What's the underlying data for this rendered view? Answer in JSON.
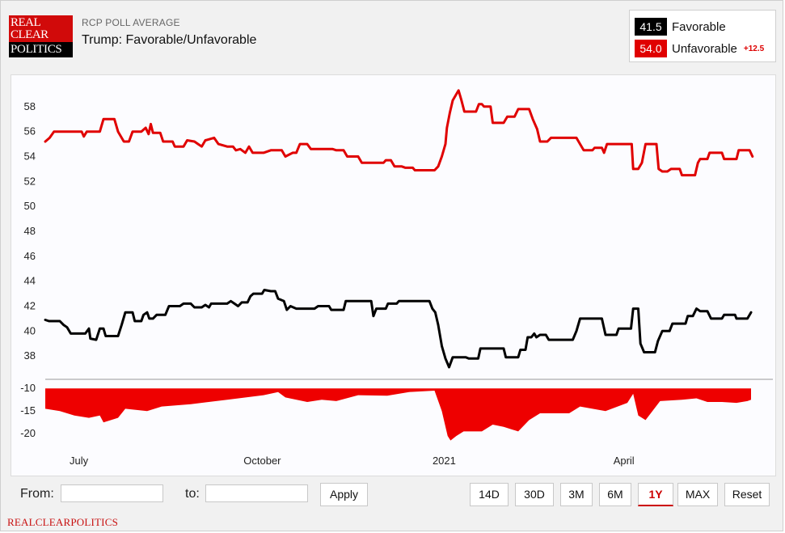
{
  "header": {
    "logo": {
      "line1": "REAL",
      "line2": "CLEAR",
      "line3": "POLITICS"
    },
    "kicker": "RCP POLL AVERAGE",
    "title": "Trump: Favorable/Unfavorable"
  },
  "legend": {
    "favorable": {
      "value": "41.5",
      "label": "Favorable",
      "color": "#000000"
    },
    "unfavorable": {
      "value": "54.0",
      "label": "Unfavorable",
      "color": "#e00000",
      "spread": "+12.5"
    }
  },
  "controls": {
    "from_label": "From:",
    "to_label": "to:",
    "from_value": "",
    "to_value": "",
    "apply_label": "Apply",
    "ranges": [
      "14D",
      "30D",
      "3M",
      "6M",
      "1Y",
      "MAX",
      "Reset"
    ],
    "active_range": "1Y"
  },
  "footer": {
    "brand": "REALCLEARPOLITICS"
  },
  "chart_data": {
    "type": "line",
    "title": "Trump: Favorable/Unfavorable",
    "x_tick_labels": [
      {
        "label": "July",
        "t": 0.024
      },
      {
        "label": "October",
        "t": 0.276
      },
      {
        "label": "2021",
        "t": 0.526
      },
      {
        "label": "April",
        "t": 0.773
      }
    ],
    "main_panel": {
      "ylim": [
        36,
        60
      ],
      "yticks": [
        38,
        40,
        42,
        44,
        46,
        48,
        50,
        52,
        54,
        56,
        58
      ]
    },
    "spread_panel": {
      "ylim": [
        -23,
        -8
      ],
      "yticks": [
        -10,
        -15,
        -20
      ]
    },
    "grid": false,
    "series": [
      {
        "name": "Unfavorable",
        "color": "#e00000",
        "points": [
          [
            0,
            55.2
          ],
          [
            0.006,
            55.5
          ],
          [
            0.012,
            56.0
          ],
          [
            0.05,
            56.0
          ],
          [
            0.053,
            55.6
          ],
          [
            0.057,
            56.0
          ],
          [
            0.075,
            56.0
          ],
          [
            0.08,
            57.0
          ],
          [
            0.095,
            57.0
          ],
          [
            0.1,
            56.0
          ],
          [
            0.108,
            55.2
          ],
          [
            0.115,
            55.2
          ],
          [
            0.12,
            56.0
          ],
          [
            0.132,
            56.0
          ],
          [
            0.138,
            56.3
          ],
          [
            0.142,
            55.8
          ],
          [
            0.145,
            56.6
          ],
          [
            0.148,
            55.9
          ],
          [
            0.158,
            55.9
          ],
          [
            0.162,
            55.2
          ],
          [
            0.175,
            55.2
          ],
          [
            0.178,
            54.8
          ],
          [
            0.19,
            54.8
          ],
          [
            0.195,
            55.3
          ],
          [
            0.205,
            55.2
          ],
          [
            0.21,
            55.0
          ],
          [
            0.215,
            54.8
          ],
          [
            0.22,
            55.3
          ],
          [
            0.232,
            55.5
          ],
          [
            0.238,
            55.0
          ],
          [
            0.25,
            54.8
          ],
          [
            0.258,
            54.8
          ],
          [
            0.262,
            54.5
          ],
          [
            0.268,
            54.6
          ],
          [
            0.275,
            54.3
          ],
          [
            0.28,
            54.8
          ],
          [
            0.285,
            54.3
          ],
          [
            0.3,
            54.3
          ],
          [
            0.31,
            54.5
          ],
          [
            0.325,
            54.5
          ],
          [
            0.33,
            54.0
          ],
          [
            0.34,
            54.3
          ],
          [
            0.345,
            54.3
          ],
          [
            0.35,
            55.0
          ],
          [
            0.36,
            55.0
          ],
          [
            0.365,
            54.6
          ],
          [
            0.395,
            54.6
          ],
          [
            0.4,
            54.5
          ],
          [
            0.41,
            54.5
          ],
          [
            0.415,
            54.0
          ],
          [
            0.43,
            54.0
          ],
          [
            0.435,
            53.5
          ],
          [
            0.465,
            53.5
          ],
          [
            0.468,
            53.7
          ],
          [
            0.475,
            53.7
          ],
          [
            0.48,
            53.2
          ],
          [
            0.49,
            53.2
          ],
          [
            0.495,
            53.1
          ],
          [
            0.505,
            53.1
          ],
          [
            0.508,
            52.9
          ],
          [
            0.535,
            52.9
          ],
          [
            0.54,
            53.2
          ],
          [
            0.545,
            54.0
          ],
          [
            0.55,
            55.0
          ],
          [
            0.552,
            56.3
          ],
          [
            0.556,
            57.5
          ],
          [
            0.56,
            58.5
          ],
          [
            0.565,
            59.0
          ],
          [
            0.568,
            59.3
          ],
          [
            0.572,
            58.5
          ],
          [
            0.576,
            57.6
          ],
          [
            0.592,
            57.6
          ],
          [
            0.596,
            58.2
          ],
          [
            0.6,
            58.2
          ],
          [
            0.603,
            58.0
          ],
          [
            0.612,
            58.0
          ],
          [
            0.615,
            56.7
          ],
          [
            0.63,
            56.7
          ],
          [
            0.635,
            57.2
          ],
          [
            0.645,
            57.2
          ],
          [
            0.65,
            57.8
          ],
          [
            0.665,
            57.8
          ],
          [
            0.67,
            57.0
          ],
          [
            0.676,
            56.2
          ],
          [
            0.68,
            55.2
          ],
          [
            0.69,
            55.2
          ],
          [
            0.695,
            55.5
          ],
          [
            0.73,
            55.5
          ],
          [
            0.735,
            55.0
          ],
          [
            0.74,
            54.5
          ],
          [
            0.752,
            54.5
          ],
          [
            0.755,
            54.7
          ],
          [
            0.765,
            54.7
          ],
          [
            0.768,
            54.3
          ],
          [
            0.772,
            55.0
          ],
          [
            0.806,
            55.0
          ],
          [
            0.808,
            53.0
          ],
          [
            0.815,
            53.0
          ],
          [
            0.82,
            53.5
          ],
          [
            0.825,
            55.0
          ],
          [
            0.84,
            55.0
          ],
          [
            0.843,
            53.0
          ],
          [
            0.848,
            52.8
          ],
          [
            0.855,
            52.8
          ],
          [
            0.86,
            53.0
          ],
          [
            0.872,
            53.0
          ],
          [
            0.875,
            52.5
          ],
          [
            0.893,
            52.5
          ],
          [
            0.897,
            53.5
          ],
          [
            0.9,
            53.8
          ],
          [
            0.91,
            53.8
          ],
          [
            0.913,
            54.3
          ],
          [
            0.93,
            54.3
          ],
          [
            0.933,
            53.8
          ],
          [
            0.95,
            53.8
          ],
          [
            0.953,
            54.5
          ],
          [
            0.968,
            54.5
          ],
          [
            0.972,
            54.0
          ]
        ]
      },
      {
        "name": "Favorable",
        "color": "#000000",
        "points": [
          [
            0,
            40.9
          ],
          [
            0.005,
            40.8
          ],
          [
            0.02,
            40.8
          ],
          [
            0.025,
            40.5
          ],
          [
            0.03,
            40.3
          ],
          [
            0.035,
            39.8
          ],
          [
            0.055,
            39.8
          ],
          [
            0.06,
            40.2
          ],
          [
            0.062,
            39.4
          ],
          [
            0.07,
            39.3
          ],
          [
            0.075,
            40.2
          ],
          [
            0.08,
            40.2
          ],
          [
            0.083,
            39.6
          ],
          [
            0.1,
            39.6
          ],
          [
            0.105,
            40.5
          ],
          [
            0.11,
            41.5
          ],
          [
            0.12,
            41.5
          ],
          [
            0.123,
            40.8
          ],
          [
            0.132,
            40.8
          ],
          [
            0.135,
            41.3
          ],
          [
            0.14,
            41.5
          ],
          [
            0.143,
            41.0
          ],
          [
            0.148,
            41.0
          ],
          [
            0.153,
            41.3
          ],
          [
            0.165,
            41.3
          ],
          [
            0.17,
            42.0
          ],
          [
            0.185,
            42.0
          ],
          [
            0.19,
            42.2
          ],
          [
            0.2,
            42.2
          ],
          [
            0.205,
            41.9
          ],
          [
            0.215,
            41.9
          ],
          [
            0.22,
            42.1
          ],
          [
            0.225,
            41.9
          ],
          [
            0.228,
            42.2
          ],
          [
            0.25,
            42.2
          ],
          [
            0.255,
            42.4
          ],
          [
            0.26,
            42.2
          ],
          [
            0.265,
            42.0
          ],
          [
            0.27,
            42.3
          ],
          [
            0.278,
            42.3
          ],
          [
            0.282,
            42.8
          ],
          [
            0.286,
            43.0
          ],
          [
            0.298,
            43.0
          ],
          [
            0.301,
            43.3
          ],
          [
            0.31,
            43.2
          ],
          [
            0.316,
            43.2
          ],
          [
            0.32,
            42.6
          ],
          [
            0.328,
            42.4
          ],
          [
            0.332,
            41.7
          ],
          [
            0.337,
            42.0
          ],
          [
            0.345,
            41.8
          ],
          [
            0.37,
            41.8
          ],
          [
            0.375,
            42.0
          ],
          [
            0.39,
            42.0
          ],
          [
            0.393,
            41.7
          ],
          [
            0.41,
            41.7
          ],
          [
            0.413,
            42.4
          ],
          [
            0.448,
            42.4
          ],
          [
            0.451,
            41.2
          ],
          [
            0.455,
            41.8
          ],
          [
            0.468,
            41.8
          ],
          [
            0.471,
            42.2
          ],
          [
            0.483,
            42.2
          ],
          [
            0.486,
            42.4
          ],
          [
            0.528,
            42.4
          ],
          [
            0.532,
            41.8
          ],
          [
            0.536,
            41.5
          ],
          [
            0.54,
            40.5
          ],
          [
            0.545,
            38.8
          ],
          [
            0.55,
            37.8
          ],
          [
            0.555,
            37.1
          ],
          [
            0.56,
            37.9
          ],
          [
            0.578,
            37.9
          ],
          [
            0.582,
            37.8
          ],
          [
            0.595,
            37.8
          ],
          [
            0.598,
            38.6
          ],
          [
            0.63,
            38.6
          ],
          [
            0.633,
            37.9
          ],
          [
            0.65,
            37.9
          ],
          [
            0.653,
            38.5
          ],
          [
            0.66,
            38.5
          ],
          [
            0.663,
            39.5
          ],
          [
            0.668,
            39.5
          ],
          [
            0.672,
            39.8
          ],
          [
            0.675,
            39.5
          ],
          [
            0.68,
            39.7
          ],
          [
            0.688,
            39.7
          ],
          [
            0.692,
            39.3
          ],
          [
            0.725,
            39.3
          ],
          [
            0.73,
            40.0
          ],
          [
            0.735,
            41.0
          ],
          [
            0.765,
            41.0
          ],
          [
            0.77,
            39.7
          ],
          [
            0.785,
            39.7
          ],
          [
            0.788,
            40.2
          ],
          [
            0.805,
            40.2
          ],
          [
            0.808,
            41.8
          ],
          [
            0.815,
            41.8
          ],
          [
            0.818,
            39.0
          ],
          [
            0.823,
            38.3
          ],
          [
            0.838,
            38.3
          ],
          [
            0.842,
            39.2
          ],
          [
            0.848,
            40.0
          ],
          [
            0.858,
            40.0
          ],
          [
            0.862,
            40.6
          ],
          [
            0.88,
            40.6
          ],
          [
            0.883,
            41.2
          ],
          [
            0.89,
            41.2
          ],
          [
            0.895,
            41.8
          ],
          [
            0.9,
            41.6
          ],
          [
            0.91,
            41.6
          ],
          [
            0.915,
            41.0
          ],
          [
            0.93,
            41.0
          ],
          [
            0.933,
            41.3
          ],
          [
            0.948,
            41.3
          ],
          [
            0.95,
            41.0
          ],
          [
            0.965,
            41.0
          ],
          [
            0.97,
            41.5
          ]
        ]
      }
    ],
    "spread_series": {
      "name": "Spread",
      "color": "#ee0000",
      "points": [
        [
          0,
          -14.5
        ],
        [
          0.02,
          -15
        ],
        [
          0.04,
          -16
        ],
        [
          0.06,
          -16.5
        ],
        [
          0.075,
          -16
        ],
        [
          0.08,
          -17.5
        ],
        [
          0.1,
          -16.5
        ],
        [
          0.11,
          -14.5
        ],
        [
          0.14,
          -15
        ],
        [
          0.16,
          -14
        ],
        [
          0.2,
          -13.5
        ],
        [
          0.25,
          -12.5
        ],
        [
          0.3,
          -11.5
        ],
        [
          0.32,
          -10.8
        ],
        [
          0.33,
          -12
        ],
        [
          0.36,
          -13
        ],
        [
          0.38,
          -12.5
        ],
        [
          0.4,
          -12.8
        ],
        [
          0.43,
          -11.5
        ],
        [
          0.47,
          -11.6
        ],
        [
          0.5,
          -10.8
        ],
        [
          0.535,
          -10.5
        ],
        [
          0.545,
          -15
        ],
        [
          0.553,
          -20.5
        ],
        [
          0.557,
          -21.5
        ],
        [
          0.565,
          -20.5
        ],
        [
          0.575,
          -19.5
        ],
        [
          0.6,
          -19.5
        ],
        [
          0.615,
          -18
        ],
        [
          0.63,
          -18.5
        ],
        [
          0.65,
          -19.5
        ],
        [
          0.665,
          -17
        ],
        [
          0.68,
          -15.5
        ],
        [
          0.72,
          -15.5
        ],
        [
          0.735,
          -14
        ],
        [
          0.77,
          -15
        ],
        [
          0.8,
          -13.2
        ],
        [
          0.808,
          -11.2
        ],
        [
          0.815,
          -16
        ],
        [
          0.825,
          -17
        ],
        [
          0.845,
          -12.8
        ],
        [
          0.875,
          -12.5
        ],
        [
          0.895,
          -12.2
        ],
        [
          0.91,
          -13
        ],
        [
          0.93,
          -13
        ],
        [
          0.95,
          -13.2
        ],
        [
          0.965,
          -12.8
        ],
        [
          0.97,
          -12.5
        ]
      ]
    }
  }
}
